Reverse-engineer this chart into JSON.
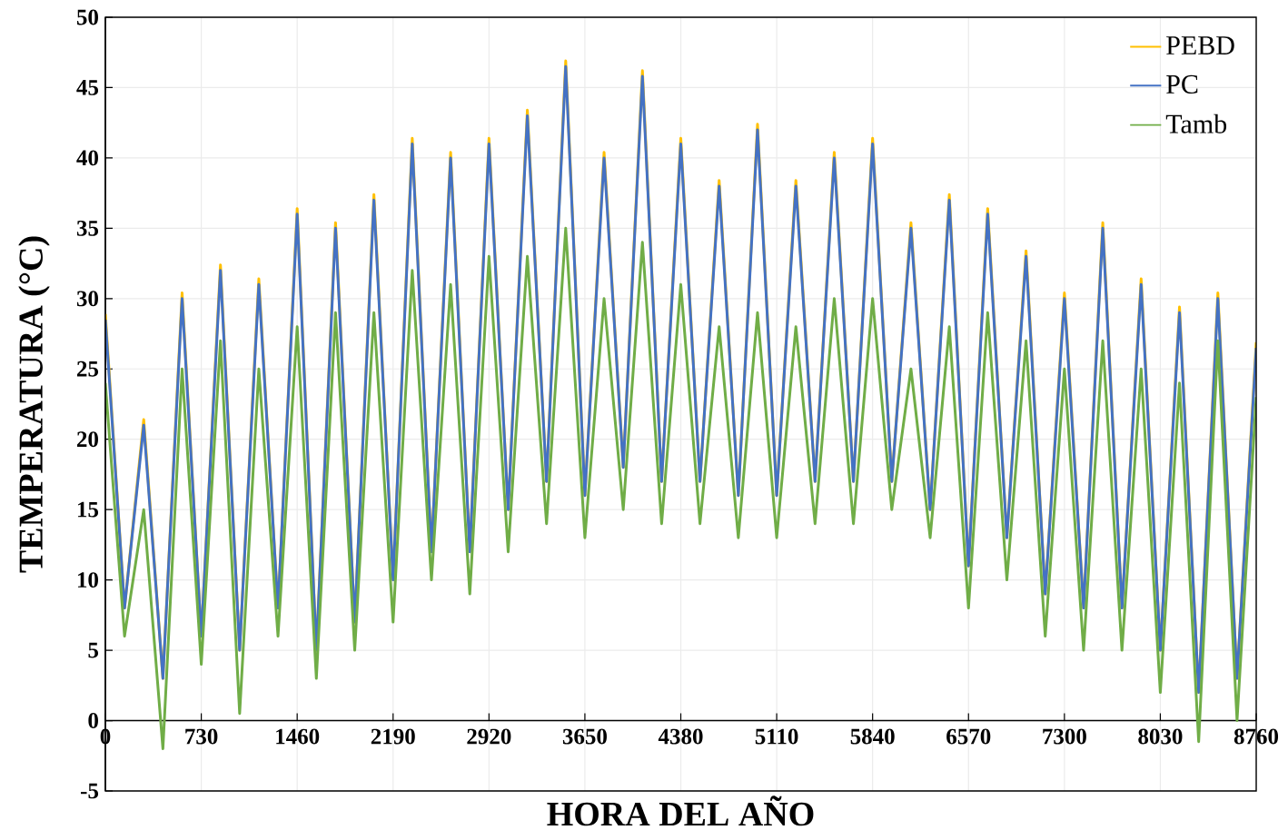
{
  "chart_data": {
    "type": "line",
    "xlabel": "HORA DEL AÑO",
    "ylabel": "TEMPERATURA (°C)",
    "x": [
      0,
      146,
      292,
      438,
      584,
      730,
      876,
      1022,
      1168,
      1314,
      1460,
      1606,
      1752,
      1898,
      2044,
      2190,
      2336,
      2482,
      2628,
      2774,
      2920,
      3066,
      3212,
      3358,
      3504,
      3650,
      3796,
      3942,
      4088,
      4234,
      4380,
      4526,
      4672,
      4818,
      4964,
      5110,
      5256,
      5402,
      5548,
      5694,
      5840,
      5986,
      6132,
      6278,
      6424,
      6570,
      6716,
      6862,
      7008,
      7154,
      7300,
      7446,
      7592,
      7738,
      7884,
      8030,
      8176,
      8322,
      8468,
      8614,
      8760
    ],
    "xlim": [
      0,
      8760
    ],
    "ylim": [
      -5,
      50
    ],
    "xticks": [
      0,
      730,
      1460,
      2190,
      2920,
      3650,
      4380,
      5110,
      5840,
      6570,
      7300,
      8030,
      8760
    ],
    "yticks": [
      -5,
      0,
      5,
      10,
      15,
      20,
      25,
      30,
      35,
      40,
      45,
      50
    ],
    "grid": true,
    "legend": "top right",
    "series": [
      {
        "name": "PEBD",
        "color": "#ffc000",
        "values": [
          28.9,
          8,
          21.4,
          3,
          30.4,
          6,
          32.4,
          5,
          31.4,
          8,
          36.4,
          5,
          35.4,
          7,
          37.4,
          10,
          41.4,
          12,
          40.4,
          12,
          41.4,
          15,
          43.4,
          17,
          46.9,
          16,
          40.4,
          18,
          46.2,
          17,
          41.4,
          17,
          38.4,
          16,
          42.4,
          16,
          38.4,
          17,
          40.4,
          17,
          41.4,
          17,
          35.4,
          15,
          37.4,
          11,
          36.4,
          13,
          33.4,
          9,
          30.4,
          8,
          35.4,
          8,
          31.4,
          5,
          29.4,
          2,
          30.4,
          3,
          26.9
        ]
      },
      {
        "name": "PC",
        "color": "#4472c4",
        "values": [
          28.5,
          8,
          21,
          3,
          30,
          6,
          32,
          5,
          31,
          8,
          36,
          5,
          35,
          7,
          37,
          10,
          41,
          12,
          40,
          12,
          41,
          15,
          43,
          17,
          46.5,
          16,
          40,
          18,
          45.8,
          17,
          41,
          17,
          38,
          16,
          42,
          16,
          38,
          17,
          40,
          17,
          41,
          17,
          35,
          15,
          37,
          11,
          36,
          13,
          33,
          9,
          30,
          8,
          35,
          8,
          31,
          5,
          29,
          2,
          30,
          3,
          26.5
        ]
      },
      {
        "name": "Tamb",
        "color": "#70ad47",
        "values": [
          24,
          6,
          15,
          -2,
          25,
          4,
          27,
          0.5,
          25,
          6,
          28,
          3,
          29,
          5,
          29,
          7,
          32,
          10,
          31,
          9,
          33,
          12,
          33,
          14,
          35,
          13,
          30,
          15,
          34,
          14,
          31,
          14,
          28,
          13,
          29,
          13,
          28,
          14,
          30,
          14,
          30,
          15,
          25,
          13,
          28,
          8,
          29,
          10,
          27,
          6,
          25,
          5,
          27,
          5,
          25,
          2,
          24,
          -1.5,
          27,
          0,
          23
        ]
      }
    ]
  }
}
